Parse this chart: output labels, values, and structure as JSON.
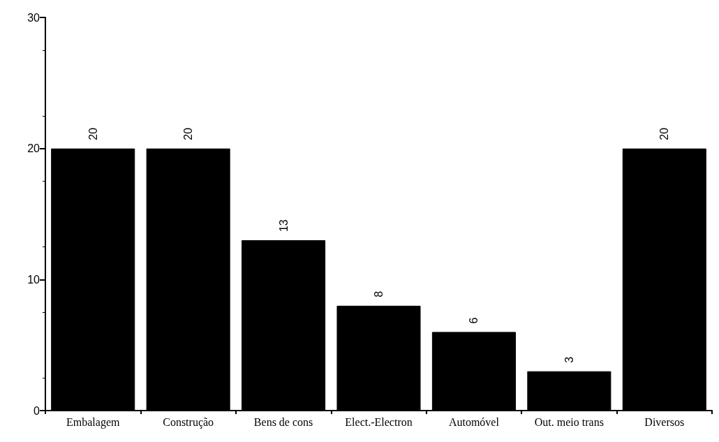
{
  "chart_data": {
    "type": "bar",
    "categories": [
      "Embalagem",
      "Construção",
      "Bens de cons",
      "Elect.-Electron",
      "Automóvel",
      "Out. meio trans",
      "Diversos"
    ],
    "values": [
      20,
      20,
      13,
      8,
      6,
      3,
      20
    ],
    "color": "#000000",
    "ylim": [
      0,
      30
    ],
    "yticks": [
      0,
      10,
      20,
      30
    ],
    "grid": false,
    "data_labels": true
  }
}
